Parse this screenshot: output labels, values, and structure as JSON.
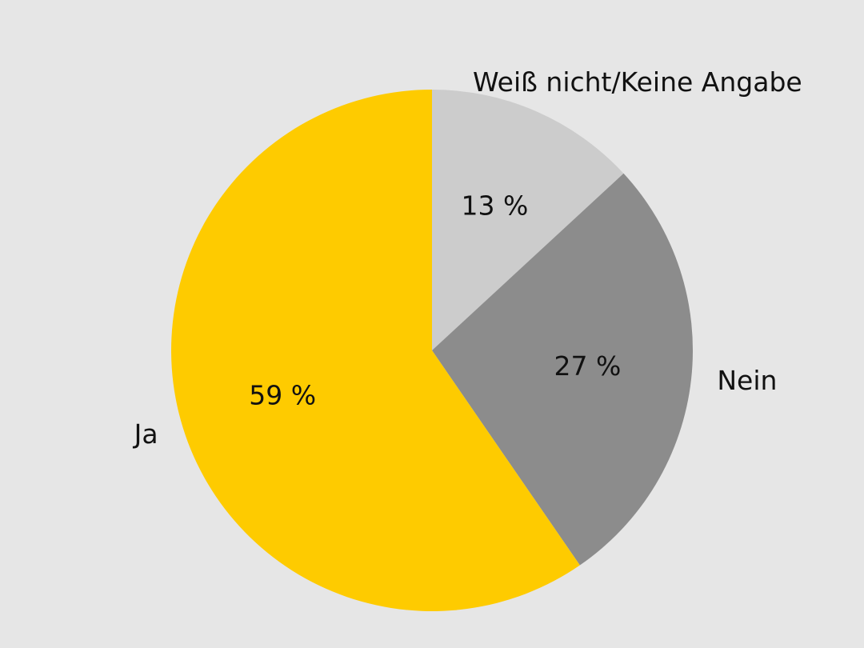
{
  "chart_data": {
    "type": "pie",
    "categories": [
      "Weiß nicht/Keine Angabe",
      "Nein",
      "Ja"
    ],
    "values": [
      13,
      27,
      59
    ],
    "value_labels": [
      "13 %",
      "27 %",
      "59 %"
    ],
    "colors": [
      "#cccccc",
      "#8c8c8c",
      "#fecb00"
    ],
    "start_angle": 0,
    "direction": "clockwise"
  }
}
